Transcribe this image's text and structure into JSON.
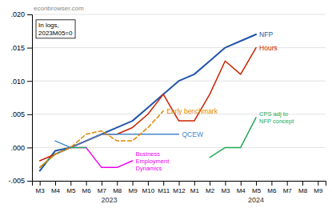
{
  "chart_data": {
    "type": "line",
    "categories": [
      "M3",
      "M4",
      "M5",
      "M6",
      "M7",
      "M8",
      "M9",
      "M10",
      "M11",
      "M12",
      "M1",
      "M2",
      "M3",
      "M4",
      "M5",
      "M6",
      "M7",
      "M8",
      "M9"
    ],
    "series": [
      {
        "name": "NFP",
        "color": "#2255aa",
        "values": [
          -0.0035,
          -0.0005,
          0.0,
          0.001,
          0.002,
          0.003,
          0.004,
          0.006,
          0.008,
          0.01,
          0.011,
          0.013,
          0.015,
          0.016,
          0.017,
          null,
          null,
          null,
          null
        ]
      },
      {
        "name": "Hours",
        "color": "#cc2200",
        "values": [
          -0.002,
          -0.001,
          0.0,
          0.001,
          0.002,
          0.002,
          0.003,
          0.005,
          0.008,
          0.004,
          0.004,
          0.008,
          0.013,
          0.011,
          0.015,
          null,
          null,
          null,
          null
        ]
      },
      {
        "name": "QCEW",
        "color": "#4488cc",
        "values": [
          null,
          0.001,
          0.0,
          0.001,
          0.002,
          0.002,
          0.002,
          0.002,
          0.002,
          0.002,
          null,
          null,
          null,
          null,
          null,
          null,
          null,
          null,
          null
        ]
      },
      {
        "name": "Business\nEmployment\nDynamics",
        "color": "#ee00ee",
        "values": [
          null,
          -0.001,
          0.0,
          0.0,
          -0.003,
          -0.003,
          -0.002,
          null,
          null,
          null,
          null,
          null,
          null,
          null,
          null,
          null,
          null,
          null,
          null
        ]
      },
      {
        "name": "CPS adj to\nNFP concept",
        "color": "#22aa55",
        "values": [
          -0.003,
          -0.001,
          0.0,
          0.0,
          null,
          null,
          null,
          null,
          null,
          null,
          null,
          -0.0015,
          0.0,
          0.0,
          0.0045,
          null,
          null,
          null,
          null
        ]
      },
      {
        "name": "Early benchmark",
        "color": "#dd8800",
        "line_style": "dashed",
        "values": [
          -0.003,
          -0.001,
          0.0,
          0.002,
          0.0025,
          0.001,
          0.001,
          0.003,
          0.0055,
          null,
          null,
          null,
          null,
          null,
          null,
          null,
          null,
          null,
          null
        ]
      }
    ],
    "ylim": [
      -0.005,
      0.02
    ],
    "yticks": [
      {
        "value": -0.005,
        "label": "-.005"
      },
      {
        "value": 0.0,
        "label": ".000"
      },
      {
        "value": 0.005,
        "label": ".005"
      },
      {
        "value": 0.01,
        "label": ".010"
      },
      {
        "value": 0.015,
        "label": ".015"
      },
      {
        "value": 0.02,
        "label": ".020"
      }
    ],
    "grid": true,
    "annotations": [
      {
        "text": "2023"
      },
      {
        "text": "2024"
      },
      {
        "text": "econbrowser.com"
      },
      {
        "text": "In logs,\n2023M05=0"
      }
    ]
  }
}
